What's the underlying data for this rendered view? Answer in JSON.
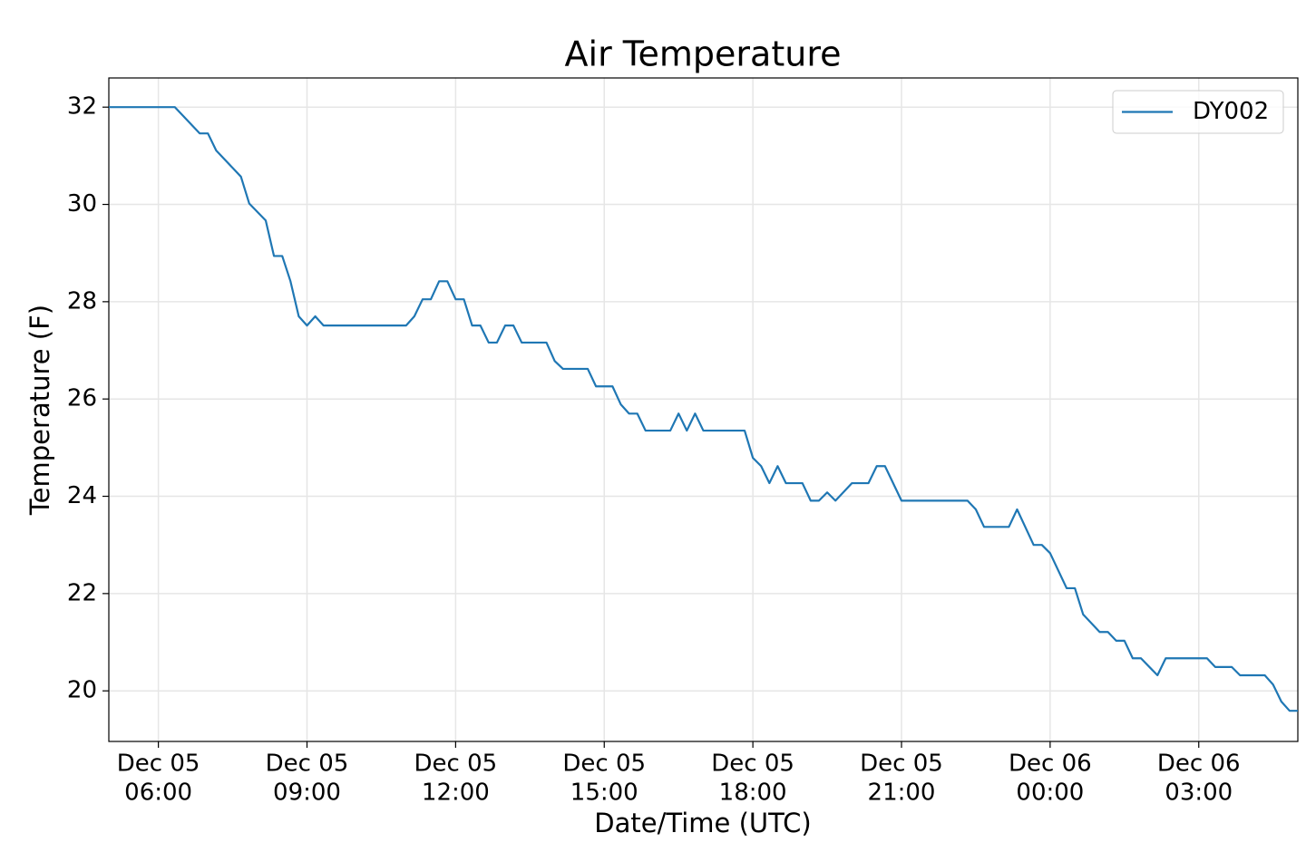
{
  "chart_data": {
    "type": "line",
    "title": "Air Temperature",
    "x_label": "Date/Time (UTC)",
    "y_label": "Temperature (F)",
    "x": [
      "Dec 05 05:00",
      "Dec 05 06:20",
      "Dec 05 06:50",
      "Dec 05 07:00",
      "Dec 05 07:10",
      "Dec 05 07:40",
      "Dec 05 07:50",
      "Dec 05 08:10",
      "Dec 05 08:20",
      "Dec 05 08:30",
      "Dec 05 08:40",
      "Dec 05 08:50",
      "Dec 05 09:00",
      "Dec 05 09:10",
      "Dec 05 09:20",
      "Dec 05 11:00",
      "Dec 05 11:10",
      "Dec 05 11:20",
      "Dec 05 11:30",
      "Dec 05 11:40",
      "Dec 05 11:50",
      "Dec 05 12:00",
      "Dec 05 12:10",
      "Dec 05 12:20",
      "Dec 05 12:30",
      "Dec 05 12:40",
      "Dec 05 12:50",
      "Dec 05 13:00",
      "Dec 05 13:10",
      "Dec 05 13:20",
      "Dec 05 13:50",
      "Dec 05 14:00",
      "Dec 05 14:10",
      "Dec 05 14:40",
      "Dec 05 14:50",
      "Dec 05 15:10",
      "Dec 05 15:20",
      "Dec 05 15:30",
      "Dec 05 15:40",
      "Dec 05 15:50",
      "Dec 05 16:20",
      "Dec 05 16:30",
      "Dec 05 16:40",
      "Dec 05 16:50",
      "Dec 05 17:00",
      "Dec 05 17:50",
      "Dec 05 18:00",
      "Dec 05 18:10",
      "Dec 05 18:20",
      "Dec 05 18:30",
      "Dec 05 18:40",
      "Dec 05 19:00",
      "Dec 05 19:10",
      "Dec 05 19:20",
      "Dec 05 19:30",
      "Dec 05 19:40",
      "Dec 05 20:00",
      "Dec 05 20:20",
      "Dec 05 20:30",
      "Dec 05 20:40",
      "Dec 05 21:00",
      "Dec 05 22:20",
      "Dec 05 22:30",
      "Dec 05 22:40",
      "Dec 05 23:10",
      "Dec 05 23:20",
      "Dec 05 23:40",
      "Dec 05 23:50",
      "Dec 06 00:00",
      "Dec 06 00:20",
      "Dec 06 00:30",
      "Dec 06 00:40",
      "Dec 06 01:00",
      "Dec 06 01:10",
      "Dec 06 01:20",
      "Dec 06 01:30",
      "Dec 06 01:40",
      "Dec 06 01:50",
      "Dec 06 02:10",
      "Dec 06 02:20",
      "Dec 06 03:10",
      "Dec 06 03:20",
      "Dec 06 03:40",
      "Dec 06 03:50",
      "Dec 06 04:20",
      "Dec 06 04:30",
      "Dec 06 04:40",
      "Dec 06 04:50",
      "Dec 06 05:00"
    ],
    "series": [
      {
        "name": "DY002",
        "color": "#1f77b4",
        "values": [
          32,
          32,
          31.46,
          31.46,
          31.11,
          30.57,
          30.02,
          29.67,
          28.94,
          28.94,
          28.42,
          27.7,
          27.51,
          27.7,
          27.51,
          27.51,
          27.7,
          28.05,
          28.05,
          28.42,
          28.42,
          28.05,
          28.05,
          27.51,
          27.51,
          27.16,
          27.16,
          27.51,
          27.51,
          27.16,
          27.16,
          26.78,
          26.62,
          26.62,
          26.26,
          26.26,
          25.89,
          25.7,
          25.7,
          25.35,
          25.35,
          25.7,
          25.35,
          25.7,
          25.35,
          25.35,
          24.79,
          24.62,
          24.27,
          24.62,
          24.27,
          24.27,
          23.91,
          23.91,
          24.08,
          23.91,
          24.27,
          24.27,
          24.62,
          24.62,
          23.91,
          23.91,
          23.73,
          23.37,
          23.37,
          23.73,
          23,
          23,
          22.83,
          22.11,
          22.11,
          21.57,
          21.21,
          21.21,
          21.03,
          21.03,
          20.67,
          20.67,
          20.32,
          20.67,
          20.67,
          20.49,
          20.49,
          20.32,
          20.32,
          20.13,
          19.78,
          19.59,
          19.59
        ]
      }
    ],
    "xlim": [
      "Dec 05 05:00",
      "Dec 06 05:00"
    ],
    "xticks": [
      {
        "value": "Dec 05 06:00",
        "label": [
          "Dec 05",
          "06:00"
        ]
      },
      {
        "value": "Dec 05 09:00",
        "label": [
          "Dec 05",
          "09:00"
        ]
      },
      {
        "value": "Dec 05 12:00",
        "label": [
          "Dec 05",
          "12:00"
        ]
      },
      {
        "value": "Dec 05 15:00",
        "label": [
          "Dec 05",
          "15:00"
        ]
      },
      {
        "value": "Dec 05 18:00",
        "label": [
          "Dec 05",
          "18:00"
        ]
      },
      {
        "value": "Dec 05 21:00",
        "label": [
          "Dec 05",
          "21:00"
        ]
      },
      {
        "value": "Dec 06 00:00",
        "label": [
          "Dec 06",
          "00:00"
        ]
      },
      {
        "value": "Dec 06 03:00",
        "label": [
          "Dec 06",
          "03:00"
        ]
      }
    ],
    "ylim": [
      18.96,
      32.6
    ],
    "yticks": [
      20,
      22,
      24,
      26,
      28,
      30,
      32
    ],
    "grid": true,
    "legend": "upper right"
  }
}
